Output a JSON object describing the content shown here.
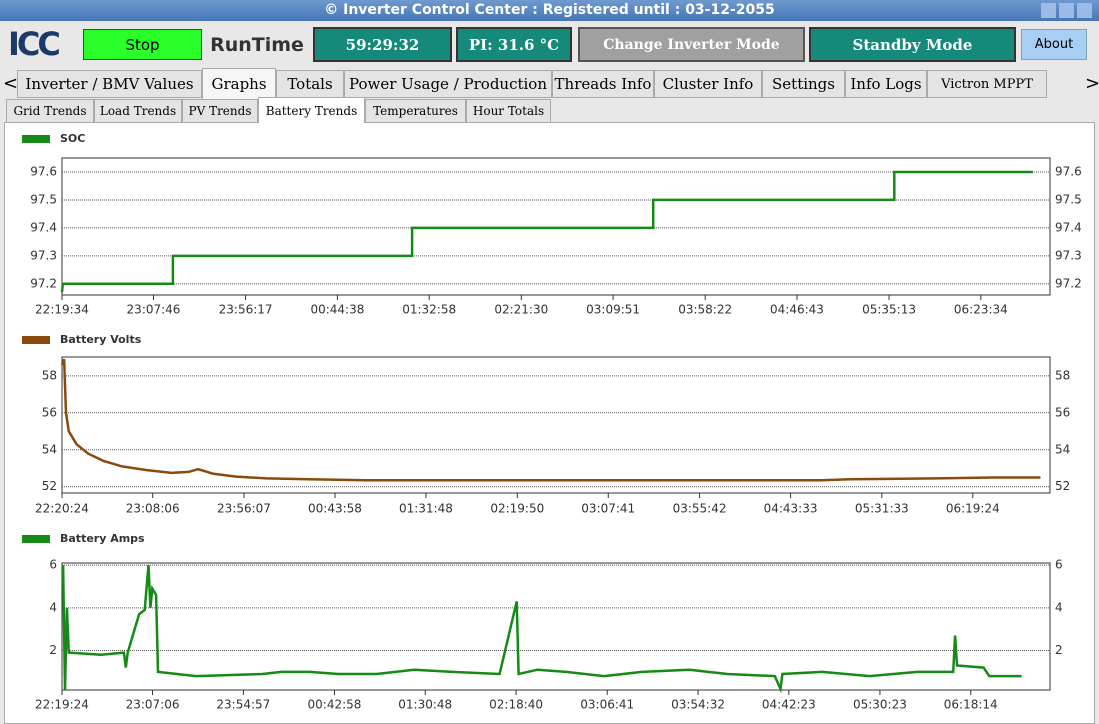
{
  "window": {
    "title": "© Inverter Control Center : Registered until : 03-12-2055",
    "logo": "ICC"
  },
  "toolbar": {
    "stop": "Stop",
    "runtime_label": "RunTime",
    "runtime": "59:29:32",
    "pi_temp": "PI: 31.6 °C",
    "change_mode": "Change Inverter Mode",
    "mode": "Standby Mode",
    "about": "About"
  },
  "tabs": [
    "Inverter / BMV Values",
    "Graphs",
    "Totals",
    "Power Usage / Production",
    "Threads Info",
    "Cluster Info",
    "Settings",
    "Info Logs",
    "Victron MPPT"
  ],
  "subtabs": [
    "Grid Trends",
    "Load Trends",
    "PV Trends",
    "Battery Trends",
    "Temperatures",
    "Hour Totals"
  ],
  "chart_data": [
    {
      "type": "line",
      "xlim": [
        "22:19:34",
        "07:00:00"
      ],
      "xticks": [
        "22:19:34",
        "23:07:46",
        "23:56:17",
        "00:44:38",
        "01:32:58",
        "02:21:30",
        "03:09:51",
        "03:58:22",
        "04:46:43",
        "05:35:13",
        "06:23:34"
      ],
      "ylim": [
        97.16,
        97.65
      ],
      "yticks": [
        97.2,
        97.3,
        97.4,
        97.5,
        97.6
      ],
      "series": [
        {
          "name": "SOC",
          "color": "#168a16",
          "x": [
            "22:19:34",
            "22:20:00",
            "23:18:00",
            "23:18:00",
            "01:24:00",
            "01:24:00",
            "03:31:00",
            "03:31:00",
            "05:38:00",
            "05:38:00",
            "06:51:00"
          ],
          "values": [
            97.17,
            97.2,
            97.2,
            97.3,
            97.3,
            97.4,
            97.4,
            97.5,
            97.5,
            97.6,
            97.6
          ]
        }
      ]
    },
    {
      "type": "line",
      "xlim": [
        "22:20:24",
        "07:00:00"
      ],
      "xticks": [
        "22:20:24",
        "23:08:06",
        "23:56:07",
        "00:43:58",
        "01:31:48",
        "02:19:50",
        "03:07:41",
        "03:55:42",
        "04:43:33",
        "05:31:33",
        "06:19:24"
      ],
      "ylim": [
        51.66,
        59.02
      ],
      "yticks": [
        52,
        54,
        56,
        58
      ],
      "series": [
        {
          "name": "Battery Volts",
          "color": "#8b4a0c",
          "x": [
            "22:20:24",
            "22:21:30",
            "22:22:30",
            "22:24:00",
            "22:28:00",
            "22:34:00",
            "22:42:00",
            "22:52:00",
            "23:05:00",
            "23:18:00",
            "23:27:00",
            "23:32:00",
            "23:40:00",
            "23:52:00",
            "00:08:00",
            "00:30:00",
            "01:00:00",
            "02:00:00",
            "03:00:00",
            "04:00:00",
            "05:00:00",
            "05:15:00",
            "06:00:00",
            "06:30:00",
            "06:55:00"
          ],
          "values": [
            58.6,
            58.9,
            56.0,
            55.0,
            54.3,
            53.8,
            53.4,
            53.1,
            52.9,
            52.75,
            52.8,
            52.95,
            52.7,
            52.55,
            52.45,
            52.4,
            52.35,
            52.35,
            52.35,
            52.35,
            52.35,
            52.4,
            52.45,
            52.5,
            52.5
          ]
        }
      ]
    },
    {
      "type": "line",
      "xlim": [
        "22:19:24",
        "07:00:00"
      ],
      "xticks": [
        "22:19:24",
        "23:07:06",
        "23:54:57",
        "00:42:58",
        "01:30:48",
        "02:18:40",
        "03:06:41",
        "03:54:32",
        "04:42:23",
        "05:30:23",
        "06:18:14"
      ],
      "ylim": [
        0.15,
        6.1
      ],
      "yticks": [
        2,
        4,
        6
      ],
      "series": [
        {
          "name": "Battery Amps",
          "color": "#168a16",
          "x": [
            "22:20:00",
            "22:21:00",
            "22:22:00",
            "22:23:00",
            "22:40:00",
            "22:52:00",
            "22:53:00",
            "22:54:00",
            "23:00:00",
            "23:03:00",
            "23:05:00",
            "23:06:00",
            "23:07:00",
            "23:09:00",
            "23:10:00",
            "23:20:00",
            "23:30:00",
            "00:05:00",
            "00:15:00",
            "00:30:00",
            "00:45:00",
            "01:05:00",
            "01:25:00",
            "01:45:00",
            "02:10:00",
            "02:19:00",
            "02:20:00",
            "02:30:00",
            "02:45:00",
            "03:05:00",
            "03:25:00",
            "03:50:00",
            "04:10:00",
            "04:35:00",
            "04:38:00",
            "04:39:00",
            "05:00:00",
            "05:25:00",
            "05:50:00",
            "06:09:00",
            "06:10:00",
            "06:11:00",
            "06:25:00",
            "06:28:00",
            "06:45:00"
          ],
          "values": [
            6.0,
            0.15,
            4.0,
            1.9,
            1.8,
            1.9,
            1.2,
            1.9,
            3.7,
            3.9,
            6.0,
            4.0,
            4.9,
            4.6,
            1.0,
            0.9,
            0.8,
            0.9,
            1.0,
            1.0,
            0.9,
            0.9,
            1.1,
            1.0,
            0.9,
            4.3,
            0.9,
            1.1,
            1.0,
            0.8,
            1.0,
            1.1,
            0.9,
            0.8,
            0.2,
            0.9,
            1.0,
            0.8,
            1.0,
            1.0,
            2.7,
            1.3,
            1.2,
            0.8,
            0.8
          ]
        }
      ]
    }
  ]
}
